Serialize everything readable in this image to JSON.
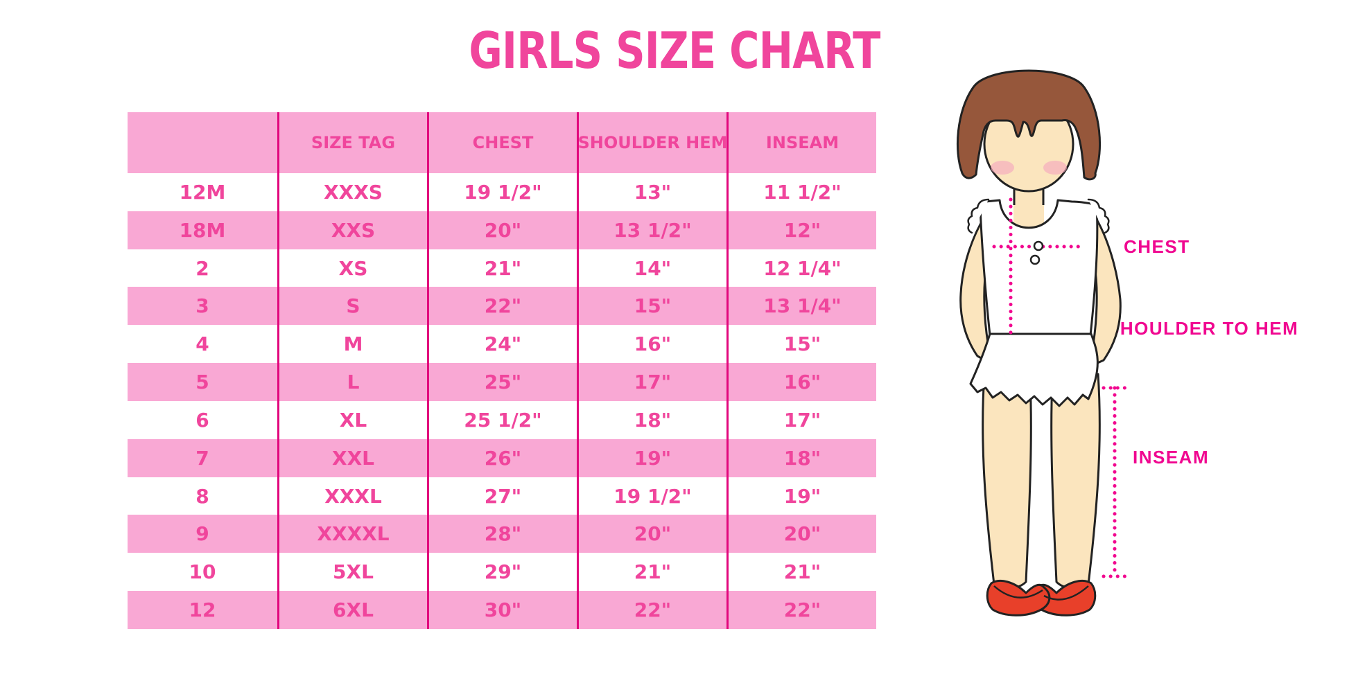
{
  "title": "GIRLS SIZE CHART",
  "chart_data": {
    "type": "table",
    "title": "GIRLS SIZE CHART",
    "columns": [
      "",
      "SIZE TAG",
      "CHEST",
      "SHOULDER HEM",
      "INSEAM"
    ],
    "rows": [
      [
        "12M",
        "XXXS",
        "19 1/2\"",
        "13\"",
        "11 1/2\""
      ],
      [
        "18M",
        "XXS",
        "20\"",
        "13 1/2\"",
        "12\""
      ],
      [
        "2",
        "XS",
        "21\"",
        "14\"",
        "12 1/4\""
      ],
      [
        "3",
        "S",
        "22\"",
        "15\"",
        "13 1/4\""
      ],
      [
        "4",
        "M",
        "24\"",
        "16\"",
        "15\""
      ],
      [
        "5",
        "L",
        "25\"",
        "17\"",
        "16\""
      ],
      [
        "6",
        "XL",
        "25 1/2\"",
        "18\"",
        "17\""
      ],
      [
        "7",
        "XXL",
        "26\"",
        "19\"",
        "18\""
      ],
      [
        "8",
        "XXXL",
        "27\"",
        "19 1/2\"",
        "19\""
      ],
      [
        "9",
        "XXXXL",
        "28\"",
        "20\"",
        "20\""
      ],
      [
        "10",
        "5XL",
        "29\"",
        "21\"",
        "21\""
      ],
      [
        "12",
        "6XL",
        "30\"",
        "22\"",
        "22\""
      ]
    ],
    "row_stripe_pattern": "white/pink alternating, header pink",
    "legend_position": "none",
    "grid": "vertical column separators only"
  },
  "diagram": {
    "chest_label": "CHEST",
    "shoulder_to_hem_label": "SHOULDER TO HEM",
    "inseam_label": "INSEAM"
  },
  "colors": {
    "title_pink": "#F0459C",
    "row_pink": "#F9A8D4",
    "separator_magenta": "#E2077D",
    "label_magenta": "#F00790",
    "dotted_line_magenta": "#F1068F",
    "hair_brown": "#96573B",
    "skin": "#FBE5BE",
    "blush": "#F4A9BF",
    "shoe_red": "#E8402A",
    "outline": "#222222"
  }
}
